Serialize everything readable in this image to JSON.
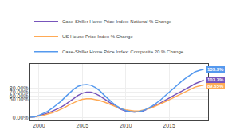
{
  "chart_data": {
    "type": "line",
    "x": [
      1999,
      1999.5,
      2000,
      2000.5,
      2001,
      2001.5,
      2002,
      2002.5,
      2003,
      2003.5,
      2004,
      2004.5,
      2005,
      2005.5,
      2006,
      2006.5,
      2007,
      2007.5,
      2008,
      2008.5,
      2009,
      2009.5,
      2010,
      2010.5,
      2011,
      2011.5,
      2012,
      2012.5,
      2013,
      2013.5,
      2014,
      2014.5,
      2015,
      2015.5,
      2016,
      2016.5,
      2017,
      2017.5,
      2018,
      2018.5,
      2019
    ],
    "series": [
      {
        "name": "Case-Shiller Home Price Index: National % Change",
        "color": "#7755bb",
        "values": [
          1,
          2,
          5,
          8,
          12,
          17,
          22,
          28,
          35,
          44,
          53,
          61,
          67,
          70,
          70,
          66,
          60,
          52,
          43,
          35,
          28,
          22,
          18,
          16,
          15,
          16,
          18,
          23,
          28,
          34,
          40,
          47,
          54,
          61,
          67,
          73,
          80,
          87,
          93,
          98,
          103
        ]
      },
      {
        "name": "US House Price Index % Change",
        "color": "#ffaa55",
        "values": [
          1,
          2,
          4,
          6,
          9,
          13,
          17,
          22,
          28,
          35,
          41,
          46,
          50,
          52,
          52,
          50,
          47,
          43,
          38,
          33,
          28,
          24,
          21,
          19,
          18,
          18,
          20,
          23,
          27,
          32,
          37,
          43,
          49,
          55,
          61,
          67,
          73,
          79,
          84,
          87,
          90
        ]
      },
      {
        "name": "Case-Shiller Home Price Index: Composite 20 % Change",
        "color": "#5599ee",
        "values": [
          1,
          2,
          6,
          11,
          17,
          25,
          34,
          44,
          56,
          68,
          78,
          86,
          90,
          91,
          89,
          83,
          74,
          62,
          50,
          40,
          31,
          24,
          19,
          16,
          15,
          16,
          19,
          24,
          31,
          39,
          48,
          59,
          70,
          80,
          91,
          101,
          110,
          119,
          126,
          130,
          133
        ]
      }
    ],
    "xlim": [
      1999.0,
      2019.5
    ],
    "xticks": [
      2000,
      2005,
      2010,
      2015
    ],
    "ylim": [
      -8,
      148
    ],
    "yticks": [
      {
        "value": 0,
        "label": "0.00%"
      },
      {
        "value": 50,
        "label": "50.00%"
      },
      {
        "value": 60,
        "label": "60.00%"
      },
      {
        "value": 70,
        "label": "70.00%"
      },
      {
        "value": 80,
        "label": "80.00%"
      }
    ],
    "grid": true,
    "legend": "upper left",
    "annotations": [
      {
        "text": "133.3%",
        "x": 2019,
        "y": 133,
        "color": "#5599ee"
      },
      {
        "text": "103.3%",
        "x": 2019,
        "y": 103,
        "color": "#7755bb"
      },
      {
        "text": "89.65%",
        "x": 2019,
        "y": 90,
        "color": "#ffaa55"
      }
    ]
  }
}
